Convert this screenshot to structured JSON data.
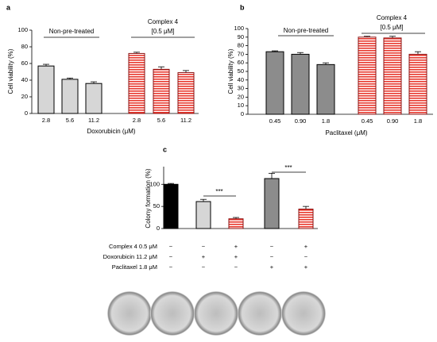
{
  "chart_data": [
    {
      "type": "bar",
      "panel": "a",
      "ylabel": "Cell viability (%)",
      "xlabel": "Doxorubicin (μM)",
      "categories": [
        "2.8",
        "5.6",
        "11.2",
        "2.8",
        "5.6",
        "11.2"
      ],
      "values": [
        57,
        41,
        36,
        72,
        53,
        49
      ],
      "errors": [
        2,
        1.5,
        2,
        1.5,
        3,
        2.5
      ],
      "colors": [
        "#d6d6d6",
        "#d6d6d6",
        "#d6d6d6",
        "#e8392f",
        "#e8392f",
        "#e8392f"
      ],
      "hatched": [
        false,
        false,
        false,
        true,
        true,
        true
      ],
      "ylim": [
        0,
        100
      ],
      "yticks": [
        0,
        20,
        40,
        60,
        80,
        100
      ],
      "annotations": [
        "Non-pre-treated",
        "Complex 4",
        "[0.5 μM]"
      ]
    },
    {
      "type": "bar",
      "panel": "b",
      "ylabel": "Cell viability (%)",
      "xlabel": "Paclitaxel (μM)",
      "categories": [
        "0.45",
        "0.90",
        "1.8",
        "0.45",
        "0.90",
        "1.8"
      ],
      "values": [
        73,
        70,
        58,
        90,
        89,
        70
      ],
      "errors": [
        1,
        2,
        2,
        1,
        2,
        3
      ],
      "colors": [
        "#8c8c8c",
        "#8c8c8c",
        "#8c8c8c",
        "#e8392f",
        "#e8392f",
        "#e8392f"
      ],
      "hatched": [
        false,
        false,
        false,
        true,
        true,
        true
      ],
      "ylim": [
        0,
        100
      ],
      "yticks": [
        0,
        10,
        20,
        30,
        40,
        50,
        60,
        70,
        80,
        90,
        100
      ],
      "annotations": [
        "Non-pre-treated",
        "Complex 4",
        "[0.5 μM]"
      ]
    },
    {
      "type": "bar",
      "panel": "c",
      "ylabel": "Colony formation (%)",
      "values": [
        100,
        61,
        22,
        113,
        44
      ],
      "errors": [
        2,
        5,
        3,
        12,
        6
      ],
      "colors": [
        "#000000",
        "#d6d6d6",
        "#e8392f",
        "#8c8c8c",
        "#e8392f"
      ],
      "hatched": [
        false,
        false,
        true,
        false,
        true
      ],
      "ylim": [
        0,
        140
      ],
      "yticks": [
        0,
        50,
        100
      ],
      "annotations": [
        "***",
        "***"
      ],
      "conditions": [
        {
          "label": "Complex 4 0.5 μM",
          "marks": [
            "−",
            "−",
            "+",
            "−",
            "+"
          ]
        },
        {
          "label": "Doxorubicin 11.2 μM",
          "marks": [
            "−",
            "+",
            "+",
            "−",
            "−"
          ]
        },
        {
          "label": "Paclitaxel 1.8 μM",
          "marks": [
            "−",
            "−",
            "−",
            "+",
            "+"
          ]
        }
      ]
    }
  ]
}
